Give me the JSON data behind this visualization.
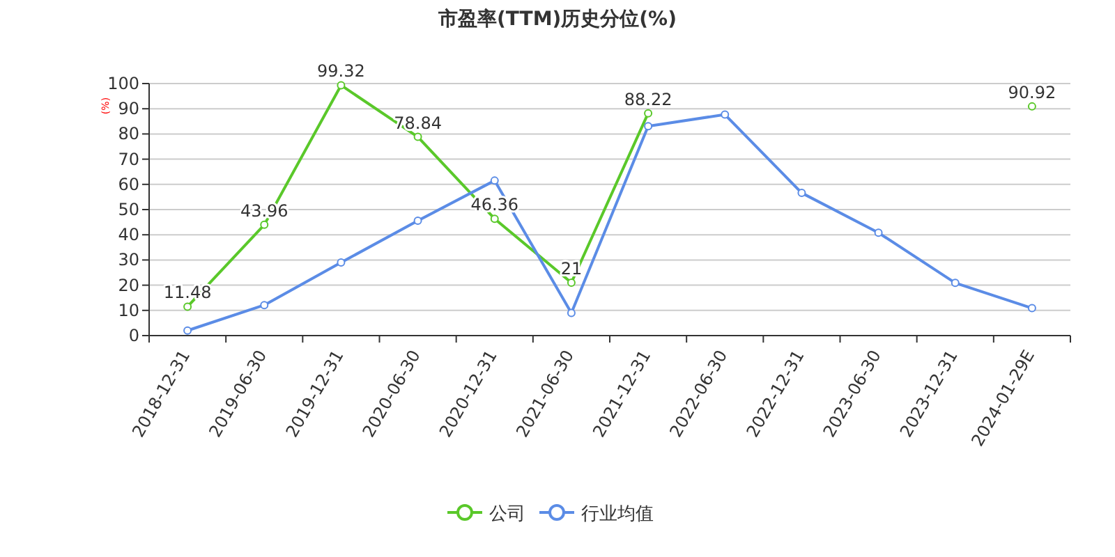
{
  "chart_data": {
    "type": "line",
    "title": "市盈率(TTM)历史分位(%)",
    "ylabel": "(%)",
    "categories": [
      "2018-12-31",
      "2019-06-30",
      "2019-12-31",
      "2020-06-30",
      "2020-12-31",
      "2021-06-30",
      "2021-12-31",
      "2022-06-30",
      "2022-12-31",
      "2023-06-30",
      "2023-12-31",
      "2024-01-29E"
    ],
    "series": [
      {
        "name": "公司",
        "color": "#5ac82a",
        "values": [
          11.48,
          43.96,
          99.32,
          78.84,
          46.36,
          21,
          88.22,
          null,
          null,
          null,
          null,
          90.92
        ],
        "value_labels": [
          "11.48",
          "43.96",
          "99.32",
          "78.84",
          "46.36",
          "21",
          "88.22",
          null,
          null,
          null,
          null,
          "90.92"
        ]
      },
      {
        "name": "行业均值",
        "color": "#5b8ce6",
        "values": [
          2.0,
          12.1,
          29.0,
          45.6,
          61.5,
          9.0,
          83.1,
          87.7,
          56.6,
          40.8,
          20.9,
          10.9
        ]
      }
    ],
    "ylim": [
      0,
      100
    ],
    "yticks": [
      0,
      10,
      20,
      30,
      40,
      50,
      60,
      70,
      80,
      90,
      100
    ],
    "grid": "y",
    "legend": "bottom",
    "marker": "circle",
    "line_style": "solid"
  }
}
